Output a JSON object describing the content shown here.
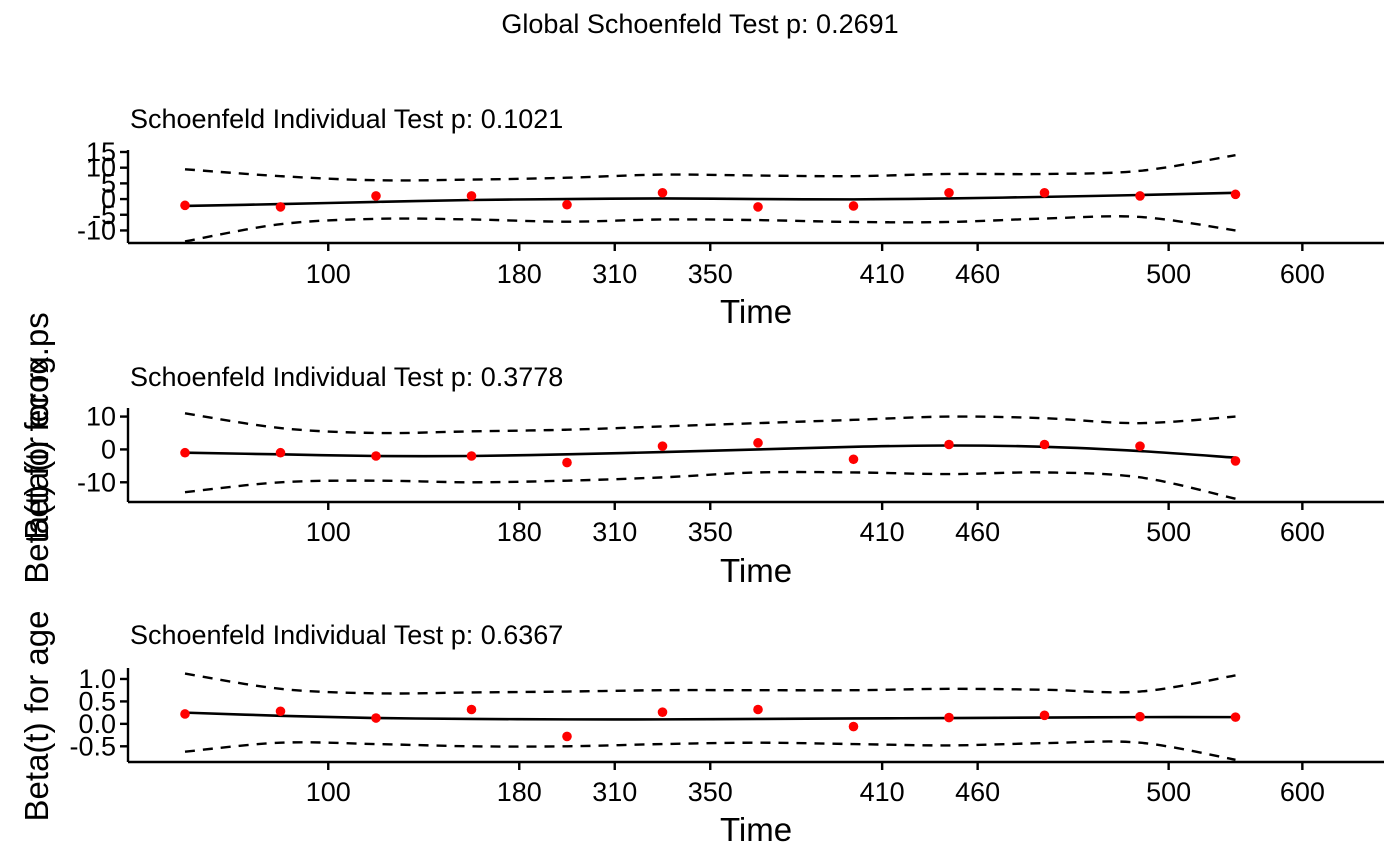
{
  "chart_data": {
    "type": "scatter",
    "title": "Global Schoenfeld Test p: 0.2691",
    "colors": {
      "points": "#ff0000",
      "lines": "#000000"
    },
    "panels": [
      {
        "subtitle": "Schoenfeld Individual Test p: 0.1021",
        "ylabel": "Beta(t) for ecog.ps",
        "xlabel": "Time",
        "ylim": [
          -14,
          15
        ],
        "yticks": [
          "-10",
          "-5",
          "0",
          "5",
          "10",
          "15"
        ],
        "ytick_values": [
          -10,
          -5,
          0,
          5,
          10,
          15
        ],
        "xticks": [
          "100",
          "180",
          "310",
          "350",
          "410",
          "460",
          "500",
          "600"
        ],
        "xtick_positions": [
          1.5,
          3.5,
          4.5,
          5.5,
          7.3,
          8.3,
          10.3,
          11.7
        ],
        "points": [
          {
            "x": 0,
            "y": -2.0
          },
          {
            "x": 1,
            "y": -2.5
          },
          {
            "x": 2,
            "y": 1.0
          },
          {
            "x": 3,
            "y": 1.0
          },
          {
            "x": 4,
            "y": -1.8
          },
          {
            "x": 5,
            "y": 2.0
          },
          {
            "x": 6,
            "y": -2.5
          },
          {
            "x": 7,
            "y": -2.2
          },
          {
            "x": 8,
            "y": 2.0
          },
          {
            "x": 9,
            "y": 2.0
          },
          {
            "x": 10,
            "y": 1.0
          },
          {
            "x": 11,
            "y": 1.5
          }
        ],
        "fit": [
          -2.2,
          -1.6,
          -0.9,
          -0.3,
          0.0,
          0.2,
          0.0,
          -0.1,
          0.2,
          0.7,
          1.3,
          2.0
        ],
        "ci_upper": [
          9.5,
          7.3,
          6.0,
          6.2,
          6.8,
          7.8,
          7.5,
          7.3,
          8.0,
          8.0,
          9.0,
          14.0
        ],
        "ci_lower": [
          -13.5,
          -8.0,
          -6.3,
          -6.5,
          -7.2,
          -6.5,
          -6.7,
          -7.3,
          -7.3,
          -6.2,
          -5.7,
          -10.0
        ]
      },
      {
        "subtitle": "Schoenfeld Individual Test p: 0.3778",
        "ylabel": "Beta(t) for rx",
        "xlabel": "Time",
        "ylim": [
          -16,
          12
        ],
        "yticks": [
          "-10",
          "0",
          "10"
        ],
        "ytick_values": [
          -10,
          0,
          10
        ],
        "xticks": [
          "100",
          "180",
          "310",
          "350",
          "410",
          "460",
          "500",
          "600"
        ],
        "xtick_positions": [
          1.5,
          3.5,
          4.5,
          5.5,
          7.3,
          8.3,
          10.3,
          11.7
        ],
        "points": [
          {
            "x": 0,
            "y": -1.0
          },
          {
            "x": 1,
            "y": -1.0
          },
          {
            "x": 2,
            "y": -2.0
          },
          {
            "x": 3,
            "y": -2.0
          },
          {
            "x": 4,
            "y": -4.0
          },
          {
            "x": 5,
            "y": 1.0
          },
          {
            "x": 6,
            "y": 2.0
          },
          {
            "x": 7,
            "y": -3.0
          },
          {
            "x": 8,
            "y": 1.5
          },
          {
            "x": 9,
            "y": 1.5
          },
          {
            "x": 10,
            "y": 1.0
          },
          {
            "x": 11,
            "y": -3.5
          }
        ],
        "fit": [
          -1.0,
          -1.5,
          -2.0,
          -2.0,
          -1.5,
          -0.8,
          0.0,
          0.8,
          1.2,
          0.8,
          -0.5,
          -2.5
        ],
        "ci_upper": [
          11.0,
          6.5,
          5.0,
          5.5,
          6.0,
          7.0,
          8.0,
          9.0,
          10.0,
          9.5,
          8.0,
          10.0
        ],
        "ci_lower": [
          -13.0,
          -10.0,
          -9.5,
          -10.0,
          -9.5,
          -8.5,
          -7.0,
          -7.0,
          -7.5,
          -7.0,
          -8.5,
          -15.0
        ]
      },
      {
        "subtitle": "Schoenfeld Individual Test p: 0.6367",
        "ylabel": "Beta(t) for age",
        "xlabel": "Time",
        "ylim": [
          -0.85,
          1.2
        ],
        "yticks": [
          "-0.5",
          "0.0",
          "0.5",
          "1.0"
        ],
        "ytick_values": [
          -0.5,
          0.0,
          0.5,
          1.0
        ],
        "xticks": [
          "100",
          "180",
          "310",
          "350",
          "410",
          "460",
          "500",
          "600"
        ],
        "xtick_positions": [
          1.5,
          3.5,
          4.5,
          5.5,
          7.3,
          8.3,
          10.3,
          11.7
        ],
        "points": [
          {
            "x": 0,
            "y": 0.22
          },
          {
            "x": 1,
            "y": 0.28
          },
          {
            "x": 2,
            "y": 0.13
          },
          {
            "x": 3,
            "y": 0.32
          },
          {
            "x": 4,
            "y": -0.28
          },
          {
            "x": 5,
            "y": 0.26
          },
          {
            "x": 6,
            "y": 0.32
          },
          {
            "x": 7,
            "y": -0.06
          },
          {
            "x": 8,
            "y": 0.14
          },
          {
            "x": 9,
            "y": 0.19
          },
          {
            "x": 10,
            "y": 0.16
          },
          {
            "x": 11,
            "y": 0.15
          }
        ],
        "fit": [
          0.25,
          0.18,
          0.13,
          0.11,
          0.1,
          0.1,
          0.11,
          0.12,
          0.13,
          0.14,
          0.15,
          0.15
        ],
        "ci_upper": [
          1.12,
          0.78,
          0.68,
          0.7,
          0.72,
          0.75,
          0.75,
          0.75,
          0.78,
          0.76,
          0.72,
          1.08
        ],
        "ci_lower": [
          -0.62,
          -0.42,
          -0.45,
          -0.5,
          -0.5,
          -0.45,
          -0.42,
          -0.45,
          -0.48,
          -0.43,
          -0.42,
          -0.8
        ]
      }
    ]
  }
}
